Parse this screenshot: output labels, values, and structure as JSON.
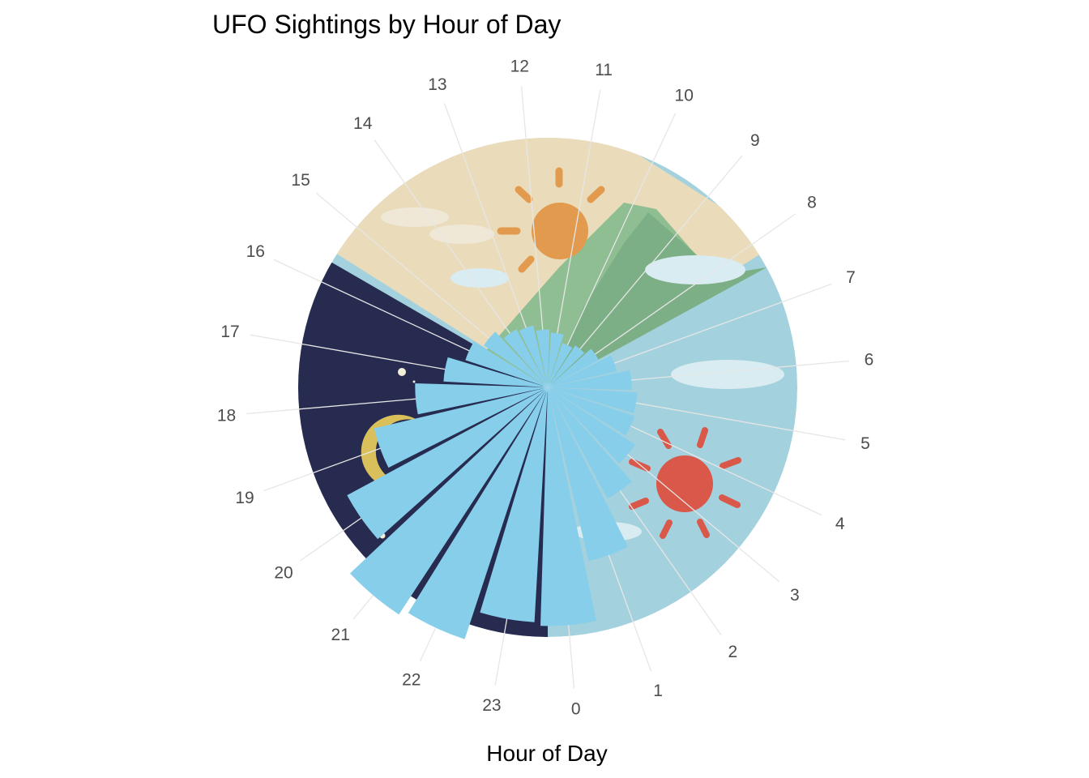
{
  "chart_data": {
    "type": "bar",
    "coord": "polar",
    "title": "UFO Sightings by Hour of Day",
    "xlabel": "Hour of Day",
    "ylabel": "",
    "categories": [
      "0",
      "1",
      "2",
      "3",
      "4",
      "5",
      "6",
      "7",
      "8",
      "9",
      "10",
      "11",
      "12",
      "13",
      "14",
      "15",
      "16",
      "17",
      "18",
      "19",
      "20",
      "21",
      "22",
      "23"
    ],
    "values": [
      3400,
      1900,
      950,
      650,
      500,
      480,
      420,
      300,
      200,
      150,
      130,
      180,
      200,
      240,
      260,
      350,
      450,
      650,
      1050,
      1900,
      3100,
      4400,
      4200,
      3300
    ],
    "bar_color": "#87CEEB",
    "background_panels": [
      {
        "name": "morning",
        "color": "#EADCBA"
      },
      {
        "name": "mountain",
        "color": "#8FBE93"
      },
      {
        "name": "afternoon",
        "color": "#A3D1DE"
      },
      {
        "name": "night",
        "color": "#262B4F"
      },
      {
        "name": "sun-morning",
        "color": "#E29A4E"
      },
      {
        "name": "sun-afternoon",
        "color": "#D9584A"
      },
      {
        "name": "moon",
        "color": "#D9C05A"
      }
    ],
    "grid": true,
    "legend": "none"
  }
}
